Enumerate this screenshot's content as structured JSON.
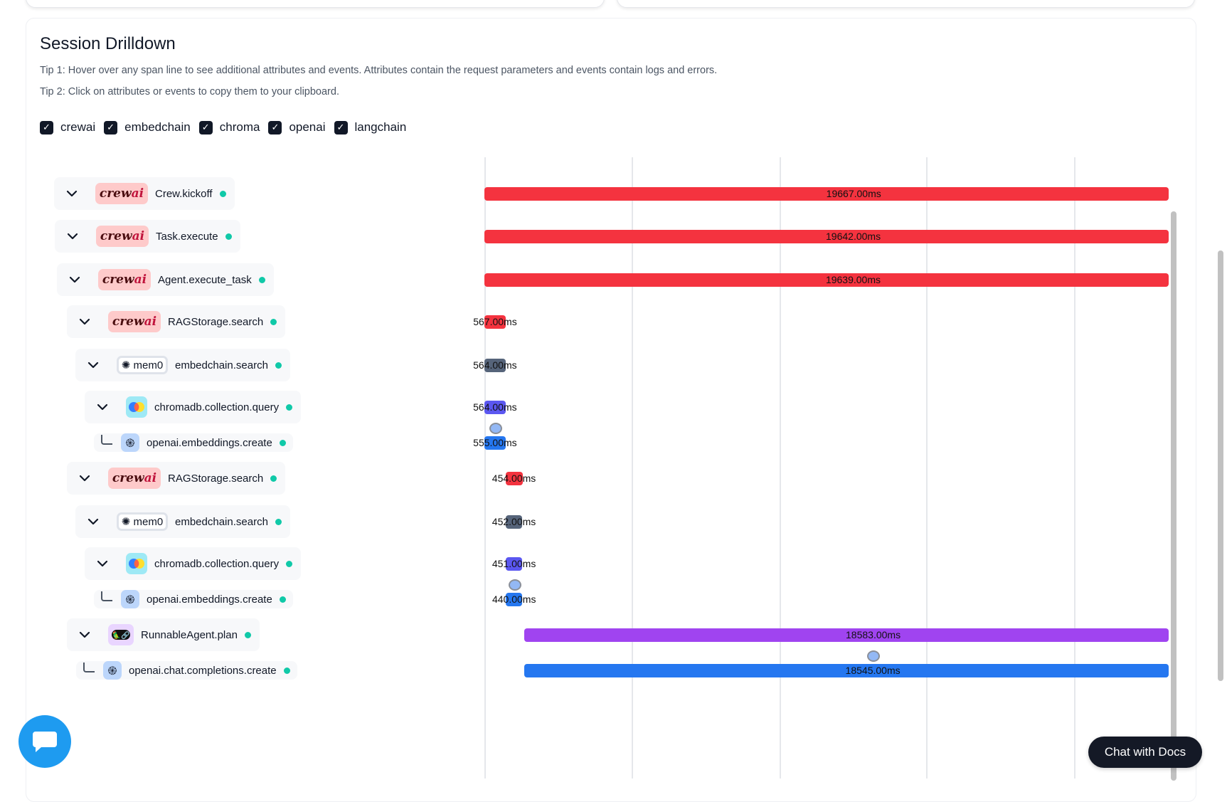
{
  "header": {
    "title": "Session Drilldown",
    "tip1": "Tip 1: Hover over any span line to see additional attributes and events. Attributes contain the request parameters and events contain logs and errors.",
    "tip2": "Tip 2: Click on attributes or events to copy them to your clipboard."
  },
  "filters": [
    {
      "label": "crewai",
      "checked": true
    },
    {
      "label": "embedchain",
      "checked": true
    },
    {
      "label": "chroma",
      "checked": true
    },
    {
      "label": "openai",
      "checked": true
    },
    {
      "label": "langchain",
      "checked": true
    }
  ],
  "colors": {
    "crewai": "#f4333f",
    "embedchain": "#56647a",
    "chroma": "#5b57f0",
    "openai": "#2577f0",
    "langchain": "#a044f0",
    "status_ok": "#10c9a8"
  },
  "badges": {
    "crewai_text": "crew",
    "crewai_accent": "ai",
    "mem0_text": "mem0"
  },
  "spans": [
    {
      "name": "Crew.kickoff",
      "provider": "crewai",
      "leaf": false,
      "duration": "19667.00ms",
      "duration_ms": 19667,
      "start_ms": 0
    },
    {
      "name": "Task.execute",
      "provider": "crewai",
      "leaf": false,
      "duration": "19642.00ms",
      "duration_ms": 19642,
      "start_ms": 0
    },
    {
      "name": "Agent.execute_task",
      "provider": "crewai",
      "leaf": false,
      "duration": "19639.00ms",
      "duration_ms": 19639,
      "start_ms": 0
    },
    {
      "name": "RAGStorage.search",
      "provider": "crewai",
      "leaf": false,
      "duration": "567.00ms",
      "duration_ms": 567,
      "start_ms": 0
    },
    {
      "name": "embedchain.search",
      "provider": "embedchain",
      "leaf": false,
      "duration": "564.00ms",
      "duration_ms": 564,
      "start_ms": 0
    },
    {
      "name": "chromadb.collection.query",
      "provider": "chroma",
      "leaf": false,
      "duration": "564.00ms",
      "duration_ms": 564,
      "start_ms": 0
    },
    {
      "name": "openai.embeddings.create",
      "provider": "openai",
      "leaf": true,
      "duration": "555.00ms",
      "duration_ms": 555,
      "start_ms": 5,
      "has_event": true
    },
    {
      "name": "RAGStorage.search",
      "provider": "crewai",
      "leaf": false,
      "duration": "454.00ms",
      "duration_ms": 454,
      "start_ms": 560
    },
    {
      "name": "embedchain.search",
      "provider": "embedchain",
      "leaf": false,
      "duration": "452.00ms",
      "duration_ms": 452,
      "start_ms": 561
    },
    {
      "name": "chromadb.collection.query",
      "provider": "chroma",
      "leaf": false,
      "duration": "451.00ms",
      "duration_ms": 451,
      "start_ms": 562
    },
    {
      "name": "openai.embeddings.create",
      "provider": "openai",
      "leaf": true,
      "duration": "440.00ms",
      "duration_ms": 440,
      "start_ms": 570,
      "has_event": true
    },
    {
      "name": "RunnableAgent.plan",
      "provider": "langchain",
      "leaf": false,
      "duration": "18583.00ms",
      "duration_ms": 18583,
      "start_ms": 1060
    },
    {
      "name": "openai.chat.completions.create",
      "provider": "openai",
      "leaf": true,
      "duration": "18545.00ms",
      "duration_ms": 18545,
      "start_ms": 1070,
      "has_event": true
    }
  ],
  "chat_button": "Chat with Docs"
}
